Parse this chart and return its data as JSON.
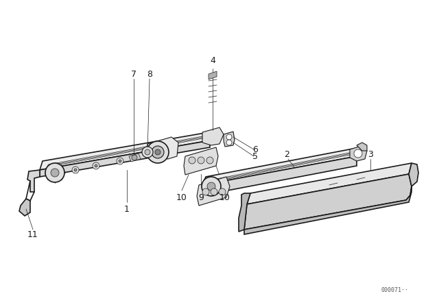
{
  "bg_color": "#ffffff",
  "line_color": "#1a1a1a",
  "text_color": "#1a1a1a",
  "fig_width": 6.4,
  "fig_height": 4.48,
  "dpi": 100,
  "watermark": "000071··"
}
